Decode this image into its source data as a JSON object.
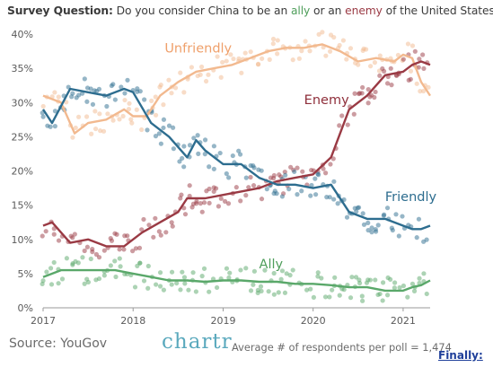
{
  "title": {
    "prefix": "Survey Question:",
    "part1": " Do you consider China to be an ",
    "ally_word": "ally",
    "part2": " or an ",
    "enemy_word": "enemy",
    "part3": " of the United States?"
  },
  "footer": {
    "source": "Source: YouGov",
    "brand": "chartr",
    "respondents": "Average # of respondents per poll = 1,474",
    "link": "Finally:"
  },
  "chart_data": {
    "type": "line",
    "title": "Survey Question: Do you consider China to be an ally or an enemy of the United States?",
    "xlabel": "",
    "ylabel": "",
    "xlim": [
      2017,
      2021.3
    ],
    "ylim": [
      0,
      40
    ],
    "x_ticks": [
      "2017",
      "2018",
      "2019",
      "2020",
      "2021"
    ],
    "y_ticks": [
      "0%",
      "5%",
      "10%",
      "15%",
      "20%",
      "25%",
      "30%",
      "35%",
      "40%"
    ],
    "grid": false,
    "legend": "direct labels on lines",
    "series": [
      {
        "name": "Unfriendly",
        "color": "#f2b98f",
        "x": [
          2017.0,
          2017.2,
          2017.35,
          2017.5,
          2017.7,
          2017.9,
          2018.0,
          2018.15,
          2018.3,
          2018.5,
          2018.7,
          2018.9,
          2019.1,
          2019.3,
          2019.5,
          2019.7,
          2019.9,
          2020.1,
          2020.3,
          2020.5,
          2020.7,
          2020.9,
          2021.0,
          2021.1,
          2021.2,
          2021.3
        ],
        "values": [
          31,
          30,
          25.5,
          27,
          27.5,
          29,
          28,
          28,
          31,
          33,
          34.5,
          35,
          35.5,
          36.5,
          37.5,
          38,
          38,
          38.5,
          37.5,
          36,
          36.5,
          36,
          37,
          36.5,
          33,
          31
        ]
      },
      {
        "name": "Enemy",
        "color": "#9a3a44",
        "x": [
          2017.0,
          2017.1,
          2017.3,
          2017.5,
          2017.7,
          2017.9,
          2018.1,
          2018.3,
          2018.5,
          2018.6,
          2018.8,
          2019.0,
          2019.2,
          2019.4,
          2019.6,
          2019.8,
          2020.0,
          2020.2,
          2020.4,
          2020.6,
          2020.8,
          2021.0,
          2021.1,
          2021.2,
          2021.3
        ],
        "values": [
          12,
          12.5,
          9.5,
          10,
          9,
          9,
          11,
          12.5,
          14,
          16,
          16,
          16.5,
          17,
          17.5,
          18.5,
          19,
          19.5,
          22,
          29,
          31,
          34,
          34.5,
          35.5,
          36,
          35.5
        ]
      },
      {
        "name": "Friendly",
        "color": "#2d6d8f",
        "x": [
          2017.0,
          2017.1,
          2017.3,
          2017.5,
          2017.7,
          2017.9,
          2018.0,
          2018.2,
          2018.4,
          2018.6,
          2018.7,
          2018.8,
          2019.0,
          2019.2,
          2019.4,
          2019.6,
          2019.8,
          2020.0,
          2020.2,
          2020.4,
          2020.6,
          2020.8,
          2021.0,
          2021.1,
          2021.2,
          2021.3
        ],
        "values": [
          29,
          27,
          32,
          31.5,
          31,
          32,
          31.5,
          27,
          25,
          22,
          24.5,
          23,
          21,
          21,
          19,
          18,
          18,
          17.5,
          18,
          14,
          13,
          13,
          12,
          11.5,
          11.5,
          12
        ]
      },
      {
        "name": "Ally",
        "color": "#5aa86a",
        "x": [
          2017.0,
          2017.2,
          2017.4,
          2017.6,
          2017.8,
          2018.0,
          2018.2,
          2018.4,
          2018.6,
          2018.8,
          2019.0,
          2019.2,
          2019.4,
          2019.6,
          2019.8,
          2020.0,
          2020.2,
          2020.4,
          2020.6,
          2020.8,
          2021.0,
          2021.1,
          2021.2,
          2021.3
        ],
        "values": [
          4.5,
          5.5,
          5.5,
          5.5,
          5.5,
          5,
          4.5,
          4,
          4,
          3.8,
          4,
          4,
          3.8,
          3.8,
          3.5,
          3.5,
          3.3,
          3,
          3,
          2.5,
          2.5,
          3,
          3.3,
          4
        ]
      }
    ]
  }
}
